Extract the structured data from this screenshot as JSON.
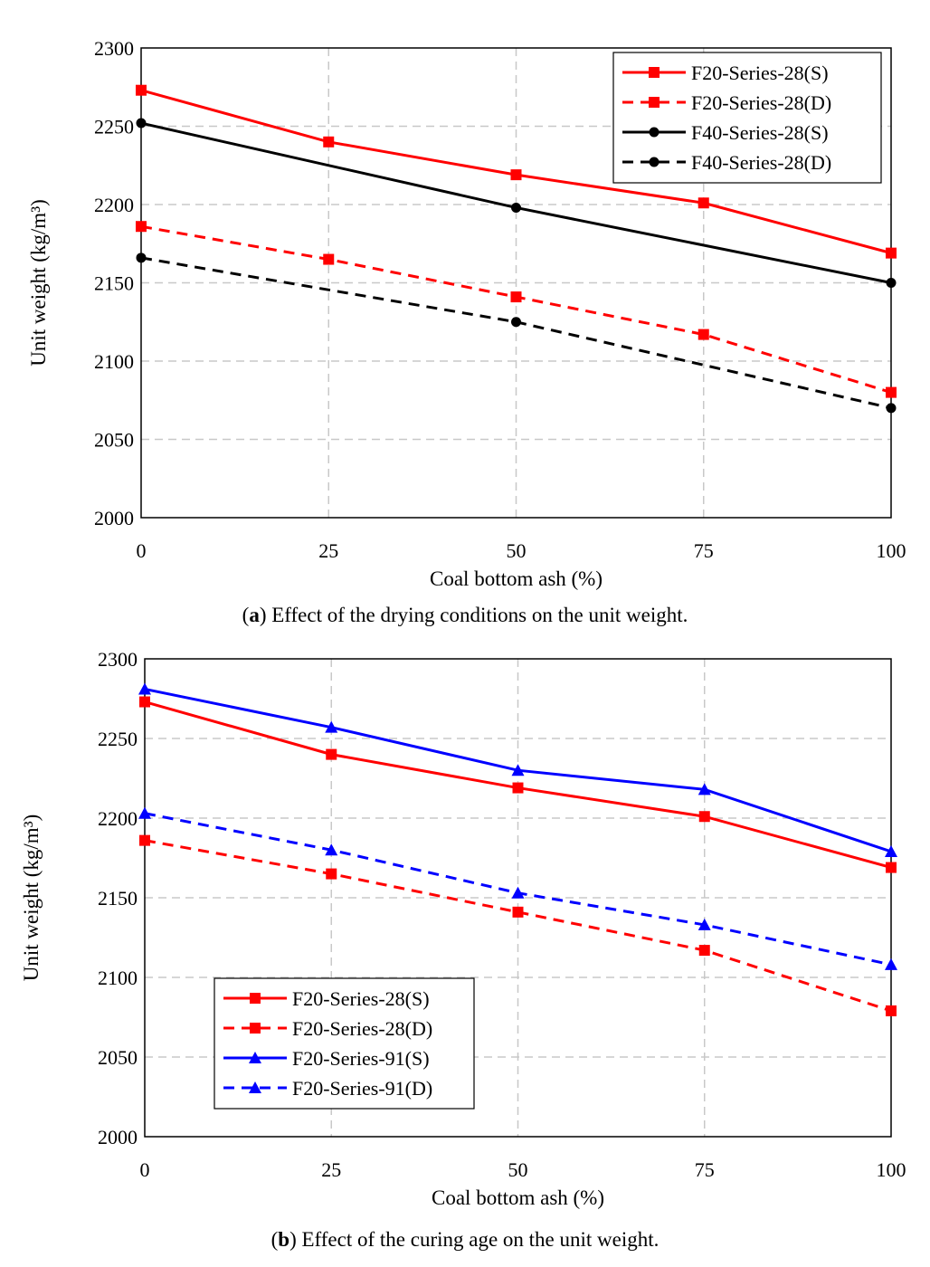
{
  "chart_data": [
    {
      "type": "line",
      "id": "a",
      "xlabel": "Coal bottom ash (%)",
      "ylabel": "Unit weight (kg/m³)",
      "x": [
        0,
        25,
        50,
        75,
        100
      ],
      "xticks": [
        "0",
        "25",
        "50",
        "75",
        "100"
      ],
      "ylim": [
        2000,
        2300
      ],
      "yticks": [
        "2000",
        "2050",
        "2100",
        "2150",
        "2200",
        "2250",
        "2300"
      ],
      "grid": true,
      "legend_position": "top-right",
      "series": [
        {
          "name": "F20-Series-28(S)",
          "values": [
            2273,
            2240,
            2219,
            2201,
            2169
          ],
          "color": "#ff0000",
          "dash": "solid",
          "marker": "square"
        },
        {
          "name": "F20-Series-28(D)",
          "values": [
            2186,
            2165,
            2141,
            2117,
            2080
          ],
          "color": "#ff0000",
          "dash": "dashed",
          "marker": "square"
        },
        {
          "name": "F40-Series-28(S)",
          "values": [
            2252,
            null,
            2198,
            null,
            2150
          ],
          "color": "#000000",
          "dash": "solid",
          "marker": "circle"
        },
        {
          "name": "F40-Series-28(D)",
          "values": [
            2166,
            null,
            2125,
            null,
            2070
          ],
          "color": "#000000",
          "dash": "dashed",
          "marker": "circle"
        }
      ],
      "caption_label": "a",
      "caption_text": ") Effect of the drying conditions on the unit weight."
    },
    {
      "type": "line",
      "id": "b",
      "xlabel": "Coal bottom ash (%)",
      "ylabel": "Unit weight (kg/m³)",
      "x": [
        0,
        25,
        50,
        75,
        100
      ],
      "xticks": [
        "0",
        "25",
        "50",
        "75",
        "100"
      ],
      "ylim": [
        2000,
        2300
      ],
      "yticks": [
        "2000",
        "2050",
        "2100",
        "2150",
        "2200",
        "2250",
        "2300"
      ],
      "grid": true,
      "legend_position": "bottom-left",
      "series": [
        {
          "name": "F20-Series-28(S)",
          "values": [
            2273,
            2240,
            2219,
            2201,
            2169
          ],
          "color": "#ff0000",
          "dash": "solid",
          "marker": "square"
        },
        {
          "name": "F20-Series-28(D)",
          "values": [
            2186,
            2165,
            2141,
            2117,
            2079
          ],
          "color": "#ff0000",
          "dash": "dashed",
          "marker": "square"
        },
        {
          "name": "F20-Series-91(S)",
          "values": [
            2281,
            2257,
            2230,
            2218,
            2179
          ],
          "color": "#0000ff",
          "dash": "solid",
          "marker": "triangle"
        },
        {
          "name": "F20-Series-91(D)",
          "values": [
            2203,
            2180,
            2153,
            2133,
            2108
          ],
          "color": "#0000ff",
          "dash": "dashed",
          "marker": "triangle"
        }
      ],
      "caption_label": "b",
      "caption_text": ") Effect of the curing age on the unit weight."
    }
  ]
}
